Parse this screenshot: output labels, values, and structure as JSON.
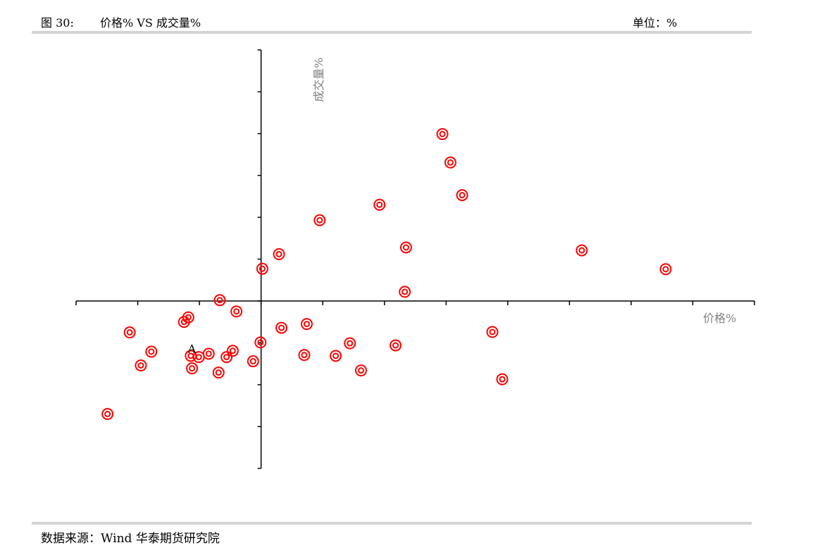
{
  "header": {
    "figure_no": "图 30:",
    "title": "价格% VS  成交量%",
    "unit": "单位：%"
  },
  "footer": {
    "source": "数据来源：Wind  华泰期货研究院"
  },
  "chart_data": {
    "type": "scatter",
    "title": "价格% VS  成交量%",
    "xlabel": "价格%",
    "ylabel": "成交量%",
    "xlim": [
      -3,
      8
    ],
    "ylim": [
      -4,
      6
    ],
    "x_tick_step": 1,
    "y_tick_step": 1,
    "tick_labels_shown": false,
    "grid": false,
    "marker": "double-circle",
    "marker_color": "#ff0000",
    "annotations": [
      {
        "text": "A",
        "x": -1.12,
        "y": -1.2
      }
    ],
    "points": [
      [
        2.94,
        3.99
      ],
      [
        3.07,
        3.31
      ],
      [
        3.26,
        2.53
      ],
      [
        1.92,
        2.3
      ],
      [
        0.95,
        1.93
      ],
      [
        2.35,
        1.28
      ],
      [
        0.29,
        1.12
      ],
      [
        5.2,
        1.21
      ],
      [
        6.56,
        0.76
      ],
      [
        0.02,
        0.77
      ],
      [
        2.33,
        0.22
      ],
      [
        -0.67,
        0.02
      ],
      [
        -0.4,
        -0.25
      ],
      [
        -1.18,
        -0.39
      ],
      [
        -1.25,
        -0.5
      ],
      [
        -2.13,
        -0.75
      ],
      [
        0.74,
        -0.55
      ],
      [
        0.33,
        -0.64
      ],
      [
        3.75,
        -0.74
      ],
      [
        -0.01,
        -0.99
      ],
      [
        1.44,
        -1.01
      ],
      [
        2.18,
        -1.06
      ],
      [
        -1.78,
        -1.21
      ],
      [
        -0.46,
        -1.19
      ],
      [
        -0.85,
        -1.26
      ],
      [
        -1.14,
        -1.31
      ],
      [
        -1.01,
        -1.34
      ],
      [
        -0.56,
        -1.34
      ],
      [
        0.7,
        -1.29
      ],
      [
        1.21,
        -1.31
      ],
      [
        -1.95,
        -1.54
      ],
      [
        -1.12,
        -1.61
      ],
      [
        -0.13,
        -1.44
      ],
      [
        -0.69,
        -1.71
      ],
      [
        1.62,
        -1.66
      ],
      [
        3.91,
        -1.87
      ],
      [
        -2.49,
        -2.7
      ]
    ]
  }
}
